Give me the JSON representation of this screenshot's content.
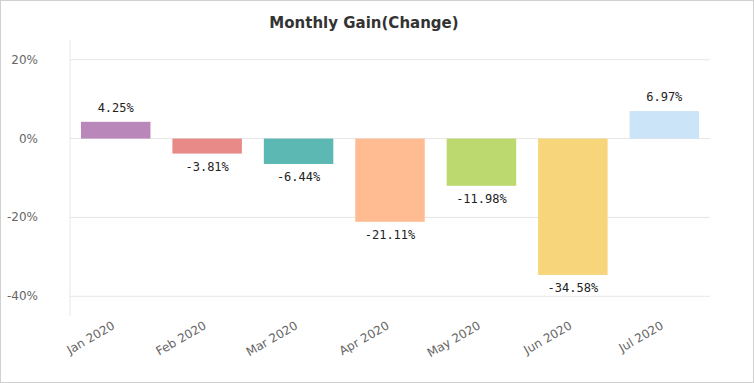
{
  "chart_data": {
    "type": "bar",
    "title": "Monthly Gain(Change)",
    "categories": [
      "Jan 2020",
      "Feb 2020",
      "Mar 2020",
      "Apr 2020",
      "May 2020",
      "Jun 2020",
      "Jul 2020"
    ],
    "values": [
      4.25,
      -3.81,
      -6.44,
      -21.11,
      -11.98,
      -34.58,
      6.97
    ],
    "value_labels": [
      "4.25%",
      "-3.81%",
      "-6.44%",
      "-21.11%",
      "-11.98%",
      "-34.58%",
      "6.97%"
    ],
    "colors": [
      "#b987b9",
      "#e88a87",
      "#5cb8b2",
      "#ffbb92",
      "#bcd96f",
      "#f7d57a",
      "#cce4f7"
    ],
    "ylim": [
      -45,
      25
    ],
    "yticks": [
      {
        "value": 20,
        "label": "20%"
      },
      {
        "value": 0,
        "label": "0%"
      },
      {
        "value": -20,
        "label": "-20%"
      },
      {
        "value": -40,
        "label": "-40%"
      }
    ],
    "grid": true,
    "data_labels": true
  }
}
